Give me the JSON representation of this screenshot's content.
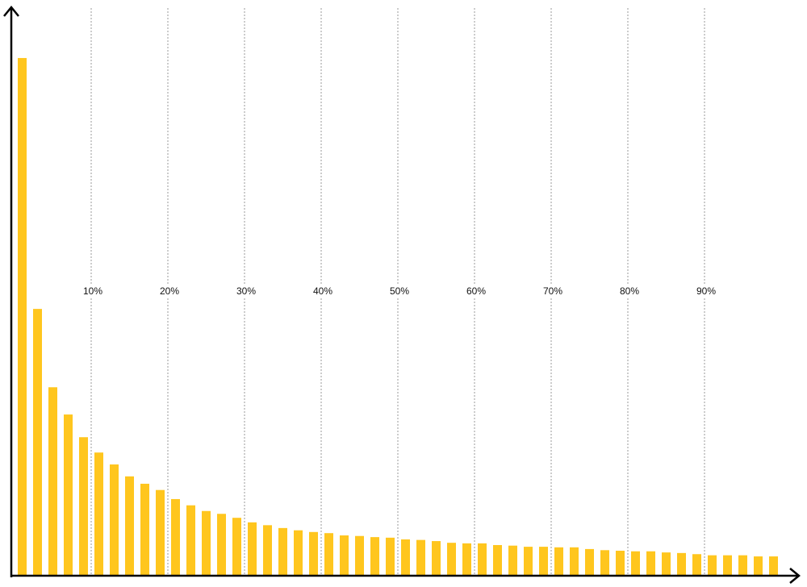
{
  "chart_data": {
    "type": "bar",
    "color": "#ffc61e",
    "values": [
      91.2,
      47.0,
      33.2,
      28.4,
      24.4,
      21.7,
      19.6,
      17.5,
      16.2,
      15.1,
      13.5,
      12.4,
      11.4,
      10.9,
      10.2,
      9.4,
      8.9,
      8.4,
      8.0,
      7.7,
      7.5,
      7.1,
      7.0,
      6.8,
      6.7,
      6.4,
      6.3,
      6.1,
      5.8,
      5.7,
      5.7,
      5.4,
      5.3,
      5.1,
      5.1,
      5.0,
      5.0,
      4.7,
      4.5,
      4.4,
      4.3,
      4.3,
      4.1,
      4.0,
      3.8,
      3.6,
      3.6,
      3.6,
      3.4,
      3.4
    ],
    "ylim": [
      0,
      100
    ],
    "xlim": [
      0,
      100
    ],
    "xticks": [
      {
        "value": 10,
        "label": "10%"
      },
      {
        "value": 20,
        "label": "20%"
      },
      {
        "value": 30,
        "label": "30%"
      },
      {
        "value": 40,
        "label": "40%"
      },
      {
        "value": 50,
        "label": "50%"
      },
      {
        "value": 60,
        "label": "60%"
      },
      {
        "value": 70,
        "label": "70%"
      },
      {
        "value": 80,
        "label": "80%"
      },
      {
        "value": 90,
        "label": "90%"
      }
    ],
    "grid": true
  }
}
